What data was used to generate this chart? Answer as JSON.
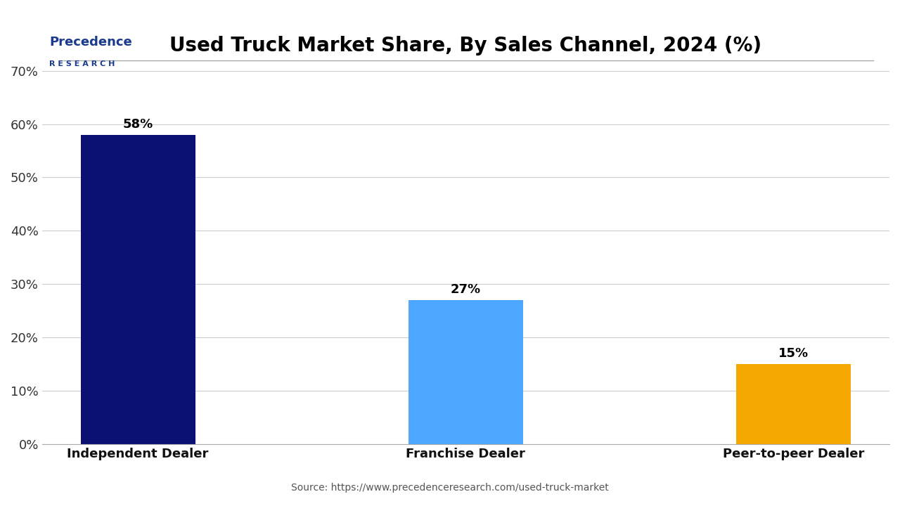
{
  "title": "Used Truck Market Share, By Sales Channel, 2024 (%)",
  "categories": [
    "Independent Dealer",
    "Franchise Dealer",
    "Peer-to-peer Dealer"
  ],
  "values": [
    58,
    27,
    15
  ],
  "bar_colors": [
    "#0a1172",
    "#4da6ff",
    "#f5a800"
  ],
  "ylabel_ticks": [
    "0%",
    "10%",
    "20%",
    "30%",
    "40%",
    "50%",
    "60%",
    "70%"
  ],
  "ytick_vals": [
    0,
    10,
    20,
    30,
    40,
    50,
    60,
    70
  ],
  "ylim": [
    0,
    70
  ],
  "source_text": "Source: https://www.precedenceresearch.com/used-truck-market",
  "title_fontsize": 20,
  "tick_fontsize": 13,
  "label_fontsize": 13,
  "value_fontsize": 13,
  "background_color": "#ffffff",
  "bar_width": 0.35,
  "logo_precedence": "Precedence",
  "logo_research": "R E S E A R C H",
  "logo_color": "#1a3a8c"
}
